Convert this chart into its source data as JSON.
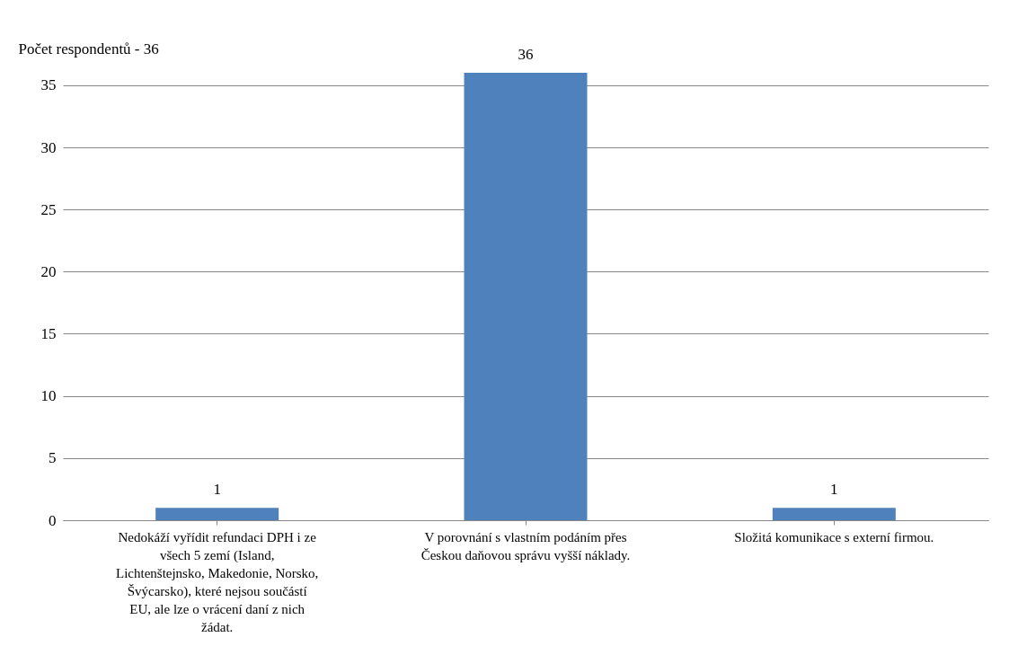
{
  "chart_data": {
    "type": "bar",
    "ylabel": "Počet respondentů - 36",
    "categories": [
      "Nedokáží vyřídit refundaci DPH i ze všech 5 zemí (Island, Lichtenštejnsko, Makedonie, Norsko, Švýcarsko), které nejsou součástí EU, ale lze o vrácení daní z nich žádat.",
      "V porovnání s vlastním podáním přes Českou daňovou správu vyšší náklady.",
      "Složitá komunikace s externí firmou."
    ],
    "values": [
      1,
      36,
      1
    ],
    "color": "#4f81bd",
    "ylim": [
      0,
      36
    ],
    "yticks": [
      0,
      5,
      10,
      15,
      20,
      25,
      30,
      35
    ],
    "grid": "y",
    "data_labels": true
  }
}
